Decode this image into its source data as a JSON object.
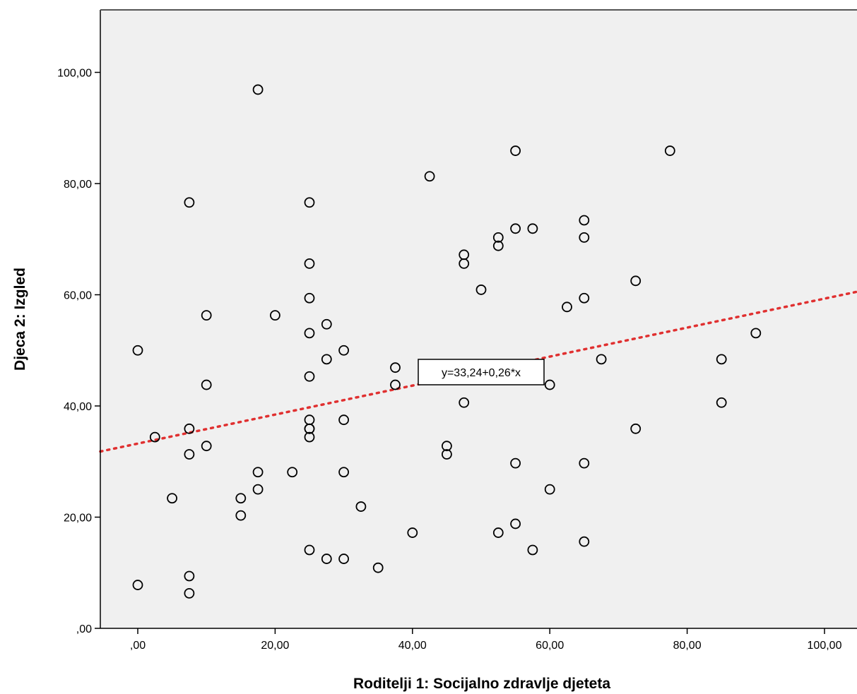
{
  "chart_data": {
    "type": "scatter",
    "title": "",
    "xlabel": "Roditelji 1: Socijalno zdravlje djeteta",
    "ylabel": "Djeca 2: Izgled",
    "xlim": [
      -5.5,
      105
    ],
    "ylim": [
      0,
      110
    ],
    "x_ticks": [
      ",00",
      "20,00",
      "40,00",
      "60,00",
      "80,00",
      "100,00"
    ],
    "y_ticks": [
      ",00",
      "20,00",
      "40,00",
      "60,00",
      "80,00",
      "100,00"
    ],
    "grid": false,
    "colors": {
      "plot_background": "#f0f0f0",
      "marker": "#000000",
      "fit_line": "#e03030"
    },
    "fit_line": {
      "intercept": 33.24,
      "slope": 0.26,
      "label": "y=33,24+0,26*x",
      "style": "dotted"
    },
    "points": [
      [
        0,
        50
      ],
      [
        0,
        7.8
      ],
      [
        2.5,
        34.4
      ],
      [
        5,
        23.4
      ],
      [
        7.5,
        76.6
      ],
      [
        7.5,
        35.9
      ],
      [
        7.5,
        31.3
      ],
      [
        7.5,
        9.4
      ],
      [
        7.5,
        6.3
      ],
      [
        10,
        56.3
      ],
      [
        10,
        43.8
      ],
      [
        10,
        32.8
      ],
      [
        15,
        23.4
      ],
      [
        15,
        20.3
      ],
      [
        17.5,
        96.9
      ],
      [
        17.5,
        28.1
      ],
      [
        17.5,
        25
      ],
      [
        20,
        56.3
      ],
      [
        22.5,
        28.1
      ],
      [
        25,
        76.6
      ],
      [
        25,
        65.6
      ],
      [
        25,
        59.4
      ],
      [
        25,
        53.1
      ],
      [
        25,
        45.3
      ],
      [
        25,
        37.5
      ],
      [
        25,
        35.9
      ],
      [
        25,
        35.9
      ],
      [
        25,
        34.4
      ],
      [
        25,
        14.1
      ],
      [
        27.5,
        54.7
      ],
      [
        27.5,
        48.4
      ],
      [
        27.5,
        12.5
      ],
      [
        30,
        50
      ],
      [
        30,
        37.5
      ],
      [
        30,
        28.1
      ],
      [
        30,
        12.5
      ],
      [
        32.5,
        21.9
      ],
      [
        35,
        10.9
      ],
      [
        37.5,
        46.9
      ],
      [
        37.5,
        43.8
      ],
      [
        40,
        17.2
      ],
      [
        42.5,
        81.3
      ],
      [
        45,
        32.8
      ],
      [
        45,
        31.3
      ],
      [
        47.5,
        67.2
      ],
      [
        47.5,
        65.6
      ],
      [
        47.5,
        40.6
      ],
      [
        50,
        60.9
      ],
      [
        52.5,
        70.3
      ],
      [
        52.5,
        68.8
      ],
      [
        52.5,
        17.2
      ],
      [
        55,
        85.9
      ],
      [
        55,
        71.9
      ],
      [
        55,
        29.7
      ],
      [
        55,
        18.8
      ],
      [
        57.5,
        71.9
      ],
      [
        57.5,
        14.1
      ],
      [
        60,
        43.8
      ],
      [
        60,
        25
      ],
      [
        62.5,
        57.8
      ],
      [
        65,
        73.4
      ],
      [
        65,
        70.3
      ],
      [
        65,
        59.4
      ],
      [
        65,
        29.7
      ],
      [
        65,
        15.6
      ],
      [
        67.5,
        48.4
      ],
      [
        72.5,
        62.5
      ],
      [
        72.5,
        35.9
      ],
      [
        77.5,
        85.9
      ],
      [
        85,
        48.4
      ],
      [
        85,
        40.6
      ],
      [
        90,
        53.1
      ]
    ]
  }
}
